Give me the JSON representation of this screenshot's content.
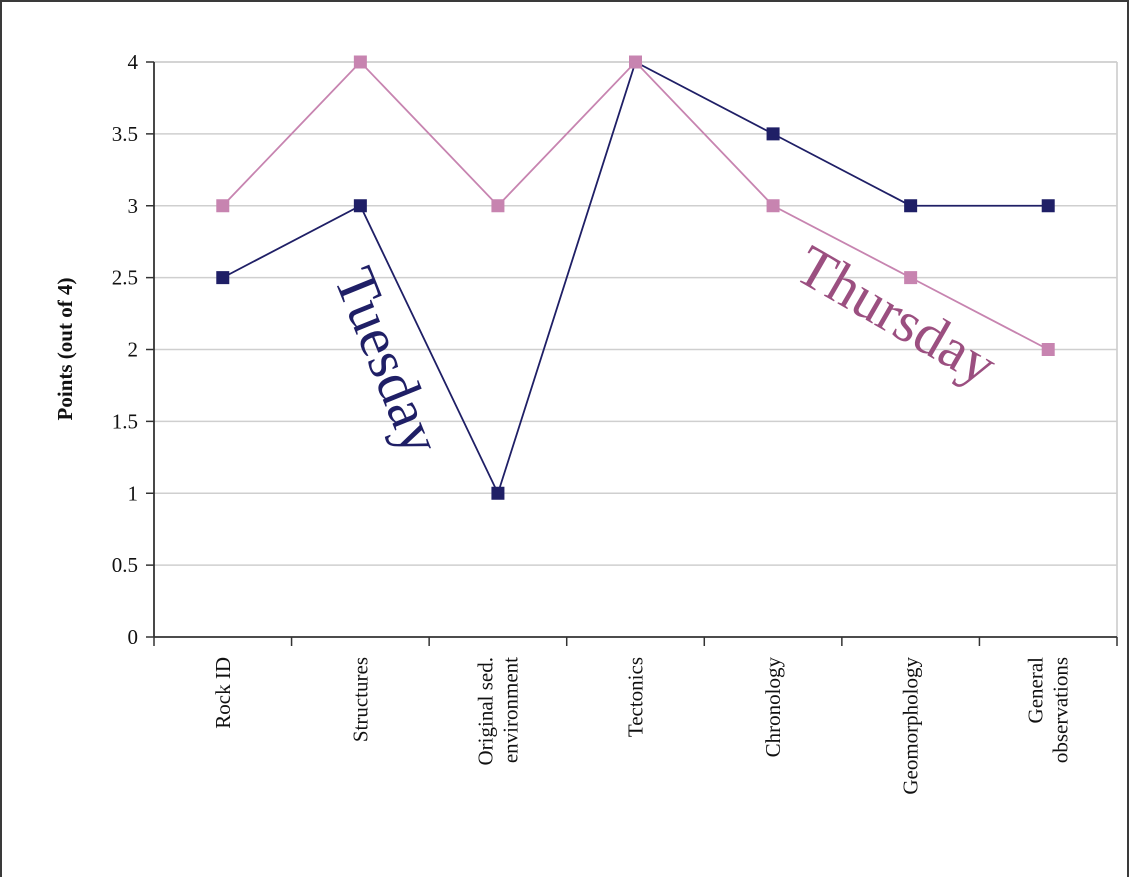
{
  "chart_data": {
    "type": "line",
    "title": "",
    "xlabel": "",
    "ylabel": "Points (out of 4)",
    "ylim": [
      0,
      4
    ],
    "yticks": [
      "0",
      "0.5",
      "1",
      "1.5",
      "2",
      "2.5",
      "3",
      "3.5",
      "4"
    ],
    "categories": [
      "Rock ID",
      "Structures",
      "Original sed. environment",
      "Tectonics",
      "Chronology",
      "Geomorphology",
      "General observations"
    ],
    "category_lines": [
      [
        "Rock ID"
      ],
      [
        "Structures"
      ],
      [
        "Original sed.",
        "environment"
      ],
      [
        "Tectonics"
      ],
      [
        "Chronology"
      ],
      [
        "Geomorphology"
      ],
      [
        "General",
        "observations"
      ]
    ],
    "grid": true,
    "legend": "none",
    "series": [
      {
        "name": "Tuesday",
        "color": "#1f1f66",
        "values": [
          2.5,
          3,
          1,
          4,
          3.5,
          3,
          3
        ]
      },
      {
        "name": "Thursday",
        "color": "#c784b0",
        "values": [
          3,
          4,
          3,
          4,
          3,
          2.5,
          2
        ]
      }
    ],
    "annotations": [
      {
        "text": "Tuesday",
        "color": "#1f1f66"
      },
      {
        "text": "Thursday",
        "color": "#9b4f80"
      }
    ]
  }
}
